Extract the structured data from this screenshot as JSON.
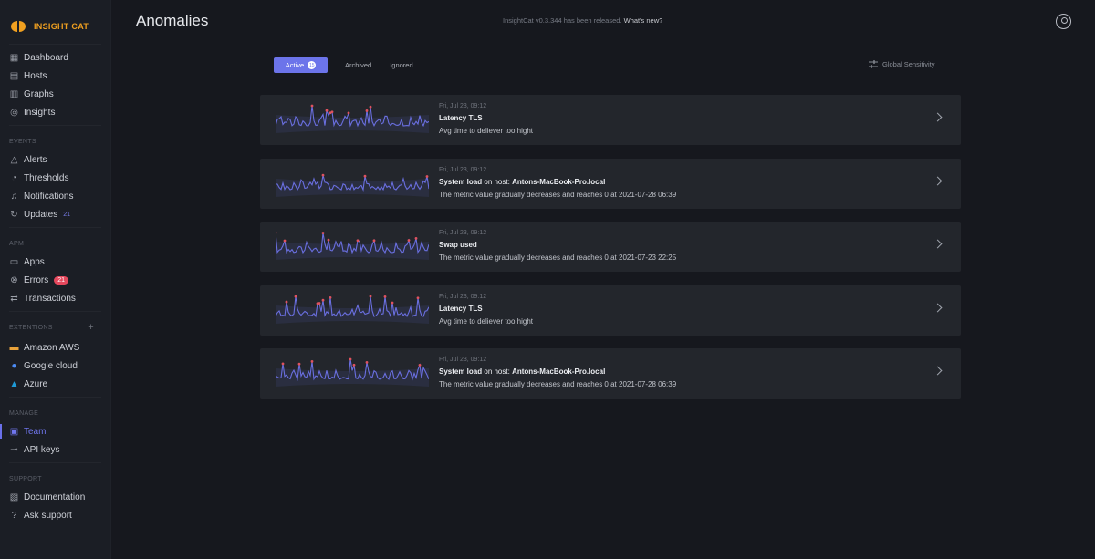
{
  "app": {
    "logo": "INSIGHT CAT",
    "brand_color": "#f0a020"
  },
  "header": {
    "title": "Anomalies",
    "release_text": "InsightCat v0.3.344 has been released.",
    "release_link": "What's new?"
  },
  "sidebar": {
    "main": [
      {
        "label": "Dashboard",
        "icon": "dashboard-icon"
      },
      {
        "label": "Hosts",
        "icon": "hosts-icon"
      },
      {
        "label": "Graphs",
        "icon": "graphs-icon"
      },
      {
        "label": "Insights",
        "icon": "insights-icon"
      }
    ],
    "events_title": "EVENTS",
    "events": [
      {
        "label": "Alerts",
        "icon": "alert-icon"
      },
      {
        "label": "Thresholds",
        "icon": "gauge-icon"
      },
      {
        "label": "Notifications",
        "icon": "bell-icon"
      },
      {
        "label": "Updates",
        "icon": "refresh-icon",
        "badge": "21"
      }
    ],
    "apm_title": "APM",
    "apm": [
      {
        "label": "Apps",
        "icon": "apps-icon"
      },
      {
        "label": "Errors",
        "icon": "error-icon",
        "badge": "21"
      },
      {
        "label": "Transactions",
        "icon": "transactions-icon"
      }
    ],
    "ext_title": "EXTENTIONS",
    "ext": [
      {
        "label": "Amazon AWS",
        "icon": "aws-icon"
      },
      {
        "label": "Google cloud",
        "icon": "google-cloud-icon"
      },
      {
        "label": "Azure",
        "icon": "azure-icon"
      }
    ],
    "manage_title": "MANAGE",
    "manage": [
      {
        "label": "Team",
        "icon": "team-icon",
        "active": true
      },
      {
        "label": "API keys",
        "icon": "key-icon"
      }
    ],
    "support_title": "SUPPORT",
    "support": [
      {
        "label": "Documentation",
        "icon": "doc-icon"
      },
      {
        "label": "Ask support",
        "icon": "help-icon"
      }
    ]
  },
  "tabs": [
    {
      "label": "Active",
      "badge": "15",
      "active": true
    },
    {
      "label": "Archived"
    },
    {
      "label": "Ignored"
    }
  ],
  "global_sensitivity": "Global Sensitivity",
  "colors": {
    "accent": "#6c74ea",
    "line": "#6a6fe0",
    "anomaly": "#e0525e",
    "card": "#23262c"
  },
  "anomalies": [
    {
      "date": "Fri, Jul 23, 09:12",
      "title": "Latency TLS",
      "host": "",
      "desc": "Avg time to deliever too hight"
    },
    {
      "date": "Fri, Jul 23, 09:12",
      "title": "System load",
      "host_prefix": " on host: ",
      "host": "Antons-MacBook-Pro.local",
      "desc": "The metric value gradually decreases and reaches 0 at 2021-07-28 06:39"
    },
    {
      "date": "Fri, Jul 23, 09:12",
      "title": "Swap used",
      "host": "",
      "desc": "The metric value gradually decreases and reaches 0 at 2021-07-23 22:25"
    },
    {
      "date": "Fri, Jul 23, 09:12",
      "title": "Latency TLS",
      "host": "",
      "desc": "Avg time to deliever too hight"
    },
    {
      "date": "Fri, Jul 23, 09:12",
      "title": "System load",
      "host_prefix": " on host: ",
      "host": "Antons-MacBook-Pro.local",
      "desc": "The metric value gradually decreases and reaches 0 at 2021-07-28 06:39"
    }
  ]
}
